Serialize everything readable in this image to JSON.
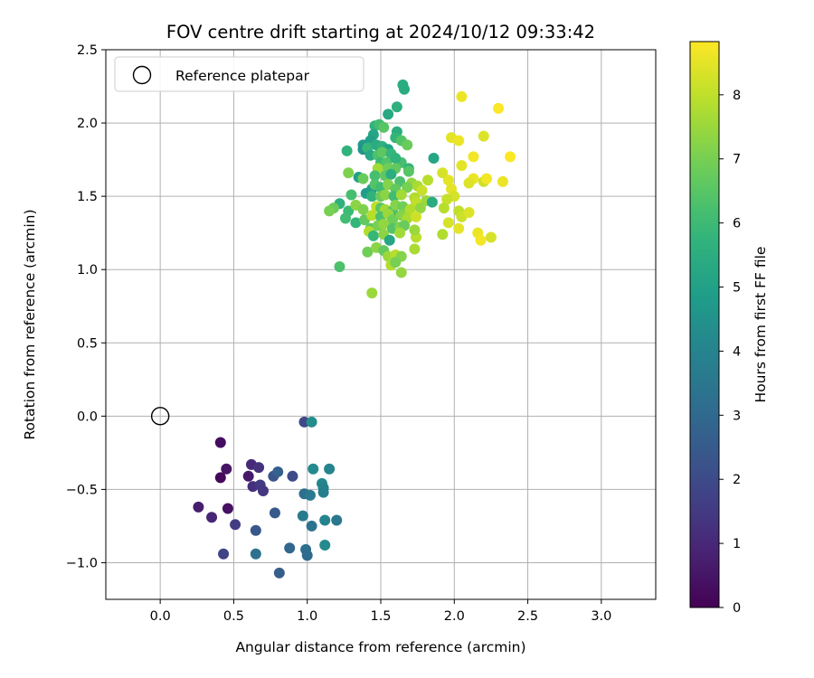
{
  "chart_data": {
    "type": "scatter",
    "title": "FOV centre drift starting at 2024/10/12 09:33:42",
    "xlabel": "Angular distance from reference (arcmin)",
    "ylabel": "Rotation from reference (arcmin)",
    "xlim": [
      -0.37,
      3.37
    ],
    "ylim": [
      -1.25,
      2.5
    ],
    "xticks": [
      "0.0",
      "0.5",
      "1.0",
      "1.5",
      "2.0",
      "2.5",
      "3.0"
    ],
    "yticks": [
      "−1.0",
      "−0.5",
      "0.0",
      "0.5",
      "1.0",
      "1.5",
      "2.0",
      "2.5"
    ],
    "grid": true,
    "legend": {
      "placement": "top-left",
      "entries": [
        "Reference platepar"
      ]
    },
    "reference_point": {
      "x": 0.0,
      "y": 0.0,
      "marker": "open-circle"
    },
    "colorbar": {
      "label": "Hours from first FF file",
      "range": [
        0,
        8.83
      ],
      "ticks": [
        "0",
        "1",
        "2",
        "3",
        "4",
        "5",
        "6",
        "7",
        "8"
      ],
      "colormap": "viridis"
    },
    "series": [
      {
        "color_by": "hours",
        "points": [
          {
            "x": 0.41,
            "y": -0.18,
            "h": 0.3
          },
          {
            "x": 0.41,
            "y": -0.42,
            "h": 0.2
          },
          {
            "x": 0.45,
            "y": -0.36,
            "h": 0.5
          },
          {
            "x": 0.26,
            "y": -0.62,
            "h": 0.7
          },
          {
            "x": 0.35,
            "y": -0.69,
            "h": 0.9
          },
          {
            "x": 0.46,
            "y": -0.63,
            "h": 0.4
          },
          {
            "x": 0.6,
            "y": -0.41,
            "h": 0.6
          },
          {
            "x": 0.62,
            "y": -0.33,
            "h": 1.0
          },
          {
            "x": 0.67,
            "y": -0.35,
            "h": 1.3
          },
          {
            "x": 0.63,
            "y": -0.48,
            "h": 1.2
          },
          {
            "x": 0.68,
            "y": -0.47,
            "h": 1.5
          },
          {
            "x": 0.7,
            "y": -0.51,
            "h": 1.4
          },
          {
            "x": 0.51,
            "y": -0.74,
            "h": 1.6
          },
          {
            "x": 0.43,
            "y": -0.94,
            "h": 1.8
          },
          {
            "x": 0.65,
            "y": -0.78,
            "h": 2.4
          },
          {
            "x": 0.77,
            "y": -0.41,
            "h": 2.3
          },
          {
            "x": 0.8,
            "y": -0.38,
            "h": 2.7
          },
          {
            "x": 0.78,
            "y": -0.66,
            "h": 2.5
          },
          {
            "x": 0.65,
            "y": -0.94,
            "h": 3.3
          },
          {
            "x": 0.9,
            "y": -0.41,
            "h": 2.0
          },
          {
            "x": 0.98,
            "y": -0.04,
            "h": 1.9
          },
          {
            "x": 1.03,
            "y": -0.04,
            "h": 4.3
          },
          {
            "x": 1.04,
            "y": -0.36,
            "h": 4.2
          },
          {
            "x": 0.98,
            "y": -0.53,
            "h": 3.2
          },
          {
            "x": 1.02,
            "y": -0.54,
            "h": 3.6
          },
          {
            "x": 1.1,
            "y": -0.46,
            "h": 4.1
          },
          {
            "x": 1.11,
            "y": -0.49,
            "h": 3.9
          },
          {
            "x": 1.11,
            "y": -0.52,
            "h": 3.8
          },
          {
            "x": 1.15,
            "y": -0.36,
            "h": 4.0
          },
          {
            "x": 0.97,
            "y": -0.68,
            "h": 3.7
          },
          {
            "x": 1.03,
            "y": -0.75,
            "h": 3.4
          },
          {
            "x": 1.12,
            "y": -0.71,
            "h": 4.0
          },
          {
            "x": 1.2,
            "y": -0.71,
            "h": 3.5
          },
          {
            "x": 0.88,
            "y": -0.9,
            "h": 2.9
          },
          {
            "x": 0.99,
            "y": -0.91,
            "h": 3.2
          },
          {
            "x": 1.0,
            "y": -0.95,
            "h": 3.0
          },
          {
            "x": 1.12,
            "y": -0.88,
            "h": 4.2
          },
          {
            "x": 0.81,
            "y": -1.07,
            "h": 2.6
          },
          {
            "x": 1.65,
            "y": 2.26,
            "h": 5.5
          },
          {
            "x": 1.66,
            "y": 2.23,
            "h": 5.4
          },
          {
            "x": 1.61,
            "y": 2.11,
            "h": 5.6
          },
          {
            "x": 1.55,
            "y": 2.06,
            "h": 5.3
          },
          {
            "x": 1.46,
            "y": 1.98,
            "h": 5.7
          },
          {
            "x": 1.49,
            "y": 1.99,
            "h": 6.1
          },
          {
            "x": 1.52,
            "y": 1.97,
            "h": 6.5
          },
          {
            "x": 1.61,
            "y": 1.94,
            "h": 5.5
          },
          {
            "x": 1.6,
            "y": 1.9,
            "h": 5.8
          },
          {
            "x": 1.64,
            "y": 1.88,
            "h": 6.4
          },
          {
            "x": 1.68,
            "y": 1.85,
            "h": 6.8
          },
          {
            "x": 1.45,
            "y": 1.92,
            "h": 5.2
          },
          {
            "x": 1.43,
            "y": 1.88,
            "h": 5.0
          },
          {
            "x": 1.38,
            "y": 1.85,
            "h": 4.8
          },
          {
            "x": 1.38,
            "y": 1.82,
            "h": 4.6
          },
          {
            "x": 1.41,
            "y": 1.83,
            "h": 5.9
          },
          {
            "x": 1.47,
            "y": 1.85,
            "h": 5.4
          },
          {
            "x": 1.51,
            "y": 1.84,
            "h": 5.6
          },
          {
            "x": 1.55,
            "y": 1.82,
            "h": 5.1
          },
          {
            "x": 1.27,
            "y": 1.81,
            "h": 5.7
          },
          {
            "x": 1.43,
            "y": 1.78,
            "h": 5.3
          },
          {
            "x": 1.48,
            "y": 1.78,
            "h": 6.3
          },
          {
            "x": 1.51,
            "y": 1.8,
            "h": 6.6
          },
          {
            "x": 1.57,
            "y": 1.79,
            "h": 5.9
          },
          {
            "x": 1.64,
            "y": 1.73,
            "h": 6.2
          },
          {
            "x": 1.5,
            "y": 1.73,
            "h": 6.0
          },
          {
            "x": 1.54,
            "y": 1.73,
            "h": 6.4
          },
          {
            "x": 1.6,
            "y": 1.76,
            "h": 5.7
          },
          {
            "x": 1.48,
            "y": 1.69,
            "h": 7.6
          },
          {
            "x": 1.55,
            "y": 1.69,
            "h": 6.9
          },
          {
            "x": 1.6,
            "y": 1.69,
            "h": 6.7
          },
          {
            "x": 1.69,
            "y": 1.69,
            "h": 5.8
          },
          {
            "x": 1.69,
            "y": 1.67,
            "h": 6.5
          },
          {
            "x": 1.86,
            "y": 1.76,
            "h": 5.2
          },
          {
            "x": 1.28,
            "y": 1.66,
            "h": 7.1
          },
          {
            "x": 1.35,
            "y": 1.63,
            "h": 5.0
          },
          {
            "x": 1.38,
            "y": 1.62,
            "h": 6.8
          },
          {
            "x": 1.46,
            "y": 1.64,
            "h": 6.2
          },
          {
            "x": 1.53,
            "y": 1.64,
            "h": 6.6
          },
          {
            "x": 1.57,
            "y": 1.65,
            "h": 5.5
          },
          {
            "x": 1.63,
            "y": 1.6,
            "h": 6.3
          },
          {
            "x": 1.71,
            "y": 1.59,
            "h": 7.4
          },
          {
            "x": 1.75,
            "y": 1.57,
            "h": 7.7
          },
          {
            "x": 1.82,
            "y": 1.61,
            "h": 7.9
          },
          {
            "x": 1.96,
            "y": 1.61,
            "h": 8.5
          },
          {
            "x": 1.44,
            "y": 1.55,
            "h": 5.0
          },
          {
            "x": 1.46,
            "y": 1.58,
            "h": 6.4
          },
          {
            "x": 1.5,
            "y": 1.56,
            "h": 6.1
          },
          {
            "x": 1.55,
            "y": 1.58,
            "h": 7.2
          },
          {
            "x": 1.6,
            "y": 1.55,
            "h": 6.7
          },
          {
            "x": 1.68,
            "y": 1.56,
            "h": 7.0
          },
          {
            "x": 1.78,
            "y": 1.54,
            "h": 8.1
          },
          {
            "x": 1.4,
            "y": 1.52,
            "h": 4.9
          },
          {
            "x": 1.44,
            "y": 1.5,
            "h": 5.7
          },
          {
            "x": 1.5,
            "y": 1.5,
            "h": 6.8
          },
          {
            "x": 1.53,
            "y": 1.51,
            "h": 7.3
          },
          {
            "x": 1.59,
            "y": 1.5,
            "h": 6.1
          },
          {
            "x": 1.64,
            "y": 1.51,
            "h": 7.6
          },
          {
            "x": 1.73,
            "y": 1.49,
            "h": 7.8
          },
          {
            "x": 1.81,
            "y": 1.47,
            "h": 7.5
          },
          {
            "x": 1.85,
            "y": 1.46,
            "h": 5.4
          },
          {
            "x": 1.74,
            "y": 1.46,
            "h": 8.0
          },
          {
            "x": 1.3,
            "y": 1.51,
            "h": 6.2
          },
          {
            "x": 1.22,
            "y": 1.45,
            "h": 5.6
          },
          {
            "x": 1.18,
            "y": 1.42,
            "h": 6.8
          },
          {
            "x": 1.15,
            "y": 1.4,
            "h": 7.0
          },
          {
            "x": 1.28,
            "y": 1.4,
            "h": 6.0
          },
          {
            "x": 1.33,
            "y": 1.44,
            "h": 7.3
          },
          {
            "x": 1.38,
            "y": 1.41,
            "h": 7.1
          },
          {
            "x": 1.47,
            "y": 1.43,
            "h": 8.0
          },
          {
            "x": 1.5,
            "y": 1.42,
            "h": 6.5
          },
          {
            "x": 1.53,
            "y": 1.41,
            "h": 7.6
          },
          {
            "x": 1.58,
            "y": 1.4,
            "h": 6.2
          },
          {
            "x": 1.6,
            "y": 1.44,
            "h": 7.2
          },
          {
            "x": 1.65,
            "y": 1.43,
            "h": 6.9
          },
          {
            "x": 1.7,
            "y": 1.41,
            "h": 7.8
          },
          {
            "x": 1.77,
            "y": 1.42,
            "h": 7.4
          },
          {
            "x": 1.26,
            "y": 1.35,
            "h": 6.1
          },
          {
            "x": 1.33,
            "y": 1.32,
            "h": 5.8
          },
          {
            "x": 1.39,
            "y": 1.34,
            "h": 6.7
          },
          {
            "x": 1.44,
            "y": 1.37,
            "h": 7.9
          },
          {
            "x": 1.5,
            "y": 1.36,
            "h": 6.3
          },
          {
            "x": 1.55,
            "y": 1.38,
            "h": 7.5
          },
          {
            "x": 1.58,
            "y": 1.34,
            "h": 6.9
          },
          {
            "x": 1.64,
            "y": 1.37,
            "h": 7.2
          },
          {
            "x": 1.68,
            "y": 1.35,
            "h": 7.7
          },
          {
            "x": 1.74,
            "y": 1.36,
            "h": 8.2
          },
          {
            "x": 1.43,
            "y": 1.28,
            "h": 6.6
          },
          {
            "x": 1.48,
            "y": 1.3,
            "h": 7.0
          },
          {
            "x": 1.52,
            "y": 1.31,
            "h": 7.4
          },
          {
            "x": 1.58,
            "y": 1.28,
            "h": 6.4
          },
          {
            "x": 1.63,
            "y": 1.29,
            "h": 7.1
          },
          {
            "x": 1.66,
            "y": 1.3,
            "h": 6.8
          },
          {
            "x": 1.42,
            "y": 1.26,
            "h": 7.8
          },
          {
            "x": 1.45,
            "y": 1.23,
            "h": 5.9
          },
          {
            "x": 1.52,
            "y": 1.24,
            "h": 7.3
          },
          {
            "x": 1.56,
            "y": 1.2,
            "h": 5.2
          },
          {
            "x": 1.63,
            "y": 1.25,
            "h": 7.6
          },
          {
            "x": 1.74,
            "y": 1.22,
            "h": 7.9
          },
          {
            "x": 1.73,
            "y": 1.27,
            "h": 7.5
          },
          {
            "x": 1.41,
            "y": 1.12,
            "h": 6.9
          },
          {
            "x": 1.47,
            "y": 1.15,
            "h": 7.3
          },
          {
            "x": 1.52,
            "y": 1.13,
            "h": 6.7
          },
          {
            "x": 1.55,
            "y": 1.09,
            "h": 7.5
          },
          {
            "x": 1.6,
            "y": 1.1,
            "h": 7.9
          },
          {
            "x": 1.64,
            "y": 1.09,
            "h": 7.2
          },
          {
            "x": 1.73,
            "y": 1.14,
            "h": 7.7
          },
          {
            "x": 1.57,
            "y": 1.03,
            "h": 7.8
          },
          {
            "x": 1.6,
            "y": 1.05,
            "h": 7.0
          },
          {
            "x": 1.64,
            "y": 0.98,
            "h": 7.4
          },
          {
            "x": 1.22,
            "y": 1.02,
            "h": 6.3
          },
          {
            "x": 1.44,
            "y": 0.84,
            "h": 7.5
          },
          {
            "x": 2.05,
            "y": 2.18,
            "h": 8.6
          },
          {
            "x": 2.3,
            "y": 2.1,
            "h": 8.8
          },
          {
            "x": 1.98,
            "y": 1.9,
            "h": 8.5
          },
          {
            "x": 2.03,
            "y": 1.88,
            "h": 8.6
          },
          {
            "x": 2.2,
            "y": 1.91,
            "h": 8.4
          },
          {
            "x": 2.13,
            "y": 1.77,
            "h": 8.7
          },
          {
            "x": 2.05,
            "y": 1.71,
            "h": 8.5
          },
          {
            "x": 2.38,
            "y": 1.77,
            "h": 8.8
          },
          {
            "x": 1.92,
            "y": 1.66,
            "h": 8.3
          },
          {
            "x": 2.13,
            "y": 1.62,
            "h": 8.6
          },
          {
            "x": 2.2,
            "y": 1.6,
            "h": 8.2
          },
          {
            "x": 2.22,
            "y": 1.62,
            "h": 8.7
          },
          {
            "x": 2.1,
            "y": 1.59,
            "h": 8.4
          },
          {
            "x": 2.33,
            "y": 1.6,
            "h": 8.6
          },
          {
            "x": 1.98,
            "y": 1.55,
            "h": 8.5
          },
          {
            "x": 2.0,
            "y": 1.5,
            "h": 8.3
          },
          {
            "x": 1.95,
            "y": 1.48,
            "h": 8.1
          },
          {
            "x": 1.93,
            "y": 1.42,
            "h": 7.9
          },
          {
            "x": 2.03,
            "y": 1.4,
            "h": 8.0
          },
          {
            "x": 2.05,
            "y": 1.36,
            "h": 8.2
          },
          {
            "x": 2.1,
            "y": 1.39,
            "h": 8.4
          },
          {
            "x": 1.96,
            "y": 1.32,
            "h": 8.3
          },
          {
            "x": 2.03,
            "y": 1.28,
            "h": 8.5
          },
          {
            "x": 1.92,
            "y": 1.24,
            "h": 7.8
          },
          {
            "x": 2.16,
            "y": 1.25,
            "h": 8.6
          },
          {
            "x": 2.18,
            "y": 1.2,
            "h": 8.7
          },
          {
            "x": 2.25,
            "y": 1.22,
            "h": 8.3
          }
        ]
      }
    ]
  }
}
